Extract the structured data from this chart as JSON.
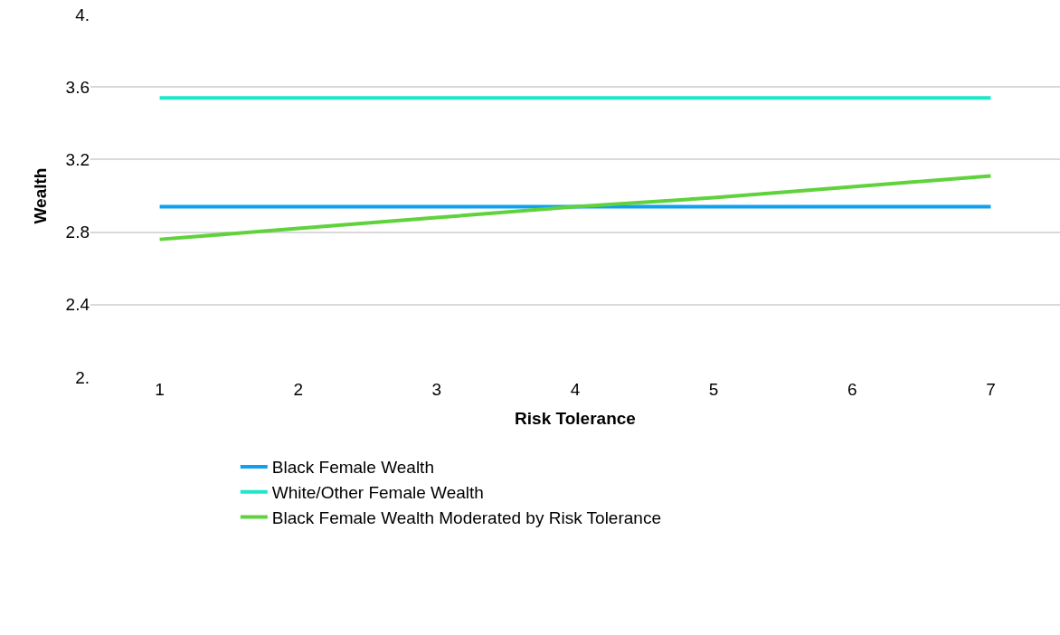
{
  "chart_data": {
    "type": "line",
    "xlabel": "Risk Tolerance",
    "ylabel": "Wealth",
    "categories": [
      "1",
      "2",
      "3",
      "4",
      "5",
      "6",
      "7"
    ],
    "series": [
      {
        "name": "Black Female Wealth",
        "color": "#0fa0f0",
        "values": [
          2.94,
          2.94,
          2.94,
          2.94,
          2.94,
          2.94,
          2.94
        ]
      },
      {
        "name": "White/Other Female Wealth",
        "color": "#1ee6c8",
        "values": [
          3.54,
          3.54,
          3.54,
          3.54,
          3.54,
          3.54,
          3.54
        ]
      },
      {
        "name": "Black Female Wealth Moderated by Risk Tolerance",
        "color": "#5fd23c",
        "values": [
          2.76,
          2.82,
          2.88,
          2.94,
          2.99,
          3.05,
          3.11
        ]
      }
    ],
    "ylim": [
      2,
      4
    ],
    "yticks": [
      {
        "value": 2,
        "label": "2."
      },
      2.4,
      2.8,
      3.2,
      3.6,
      {
        "value": 4,
        "label": "4."
      }
    ],
    "grid": "y",
    "legend": "bottom",
    "marker": "none",
    "line_style": "solid"
  }
}
